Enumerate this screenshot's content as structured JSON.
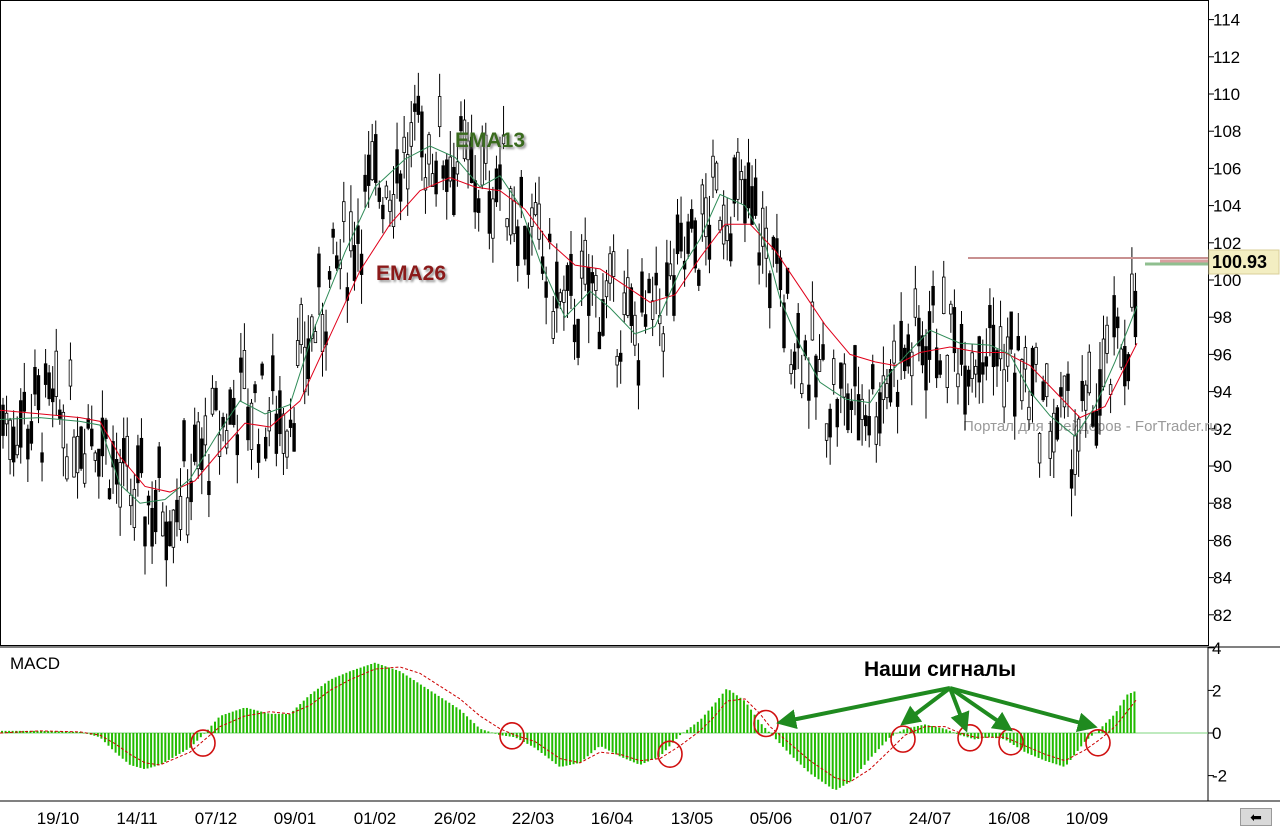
{
  "chart_data": [
    {
      "type": "candlestick",
      "title": "",
      "ylim": [
        80,
        115
      ],
      "y_ticks": [
        82,
        84,
        86,
        88,
        90,
        92,
        94,
        96,
        98,
        100,
        102,
        104,
        106,
        108,
        110,
        112,
        114
      ],
      "last_price_label": "100.93",
      "watermark": "Портал для трейдеров - ForTrader.ru",
      "x_tick_labels": [
        "19/10",
        "14/11",
        "07/12",
        "09/01",
        "01/02",
        "26/02",
        "22/03",
        "16/04",
        "13/05",
        "05/06",
        "01/07",
        "24/07",
        "16/08",
        "10/09"
      ],
      "annotations": [
        "EMA13",
        "EMA26"
      ],
      "series": [
        {
          "name": "EMA13",
          "color": "#2e8b57",
          "label_color": "#3a6b1e",
          "values": [
            [
              0,
              92.5
            ],
            [
              40,
              92.6
            ],
            [
              80,
              92.4
            ],
            [
              100,
              92.2
            ],
            [
              120,
              89
            ],
            [
              140,
              88
            ],
            [
              165,
              88.2
            ],
            [
              190,
              89.3
            ],
            [
              215,
              91.5
            ],
            [
              240,
              93.5
            ],
            [
              265,
              92.8
            ],
            [
              290,
              93.3
            ],
            [
              315,
              97.5
            ],
            [
              345,
              101.5
            ],
            [
              375,
              105
            ],
            [
              405,
              106.5
            ],
            [
              430,
              107.2
            ],
            [
              455,
              106.6
            ],
            [
              480,
              105
            ],
            [
              500,
              105.6
            ],
            [
              520,
              104
            ],
            [
              540,
              101
            ],
            [
              565,
              98
            ],
            [
              590,
              99.4
            ],
            [
              610,
              98.5
            ],
            [
              635,
              97.1
            ],
            [
              655,
              97.5
            ],
            [
              680,
              100.5
            ],
            [
              700,
              102.2
            ],
            [
              720,
              104.6
            ],
            [
              745,
              104
            ],
            [
              765,
              102
            ],
            [
              780,
              99
            ],
            [
              800,
              96.5
            ],
            [
              820,
              94.5
            ],
            [
              845,
              93.6
            ],
            [
              870,
              93.4
            ],
            [
              890,
              95
            ],
            [
              910,
              96.2
            ],
            [
              930,
              97.3
            ],
            [
              960,
              96.6
            ],
            [
              990,
              96.5
            ],
            [
              1010,
              96
            ],
            [
              1030,
              94
            ],
            [
              1050,
              92.7
            ],
            [
              1075,
              91.6
            ],
            [
              1095,
              93.2
            ],
            [
              1115,
              95.6
            ],
            [
              1137,
              98.6
            ]
          ]
        },
        {
          "name": "EMA26",
          "color": "#e0001a",
          "label_color": "#8b1a1a",
          "values": [
            [
              0,
              93
            ],
            [
              40,
              92.8
            ],
            [
              80,
              92.6
            ],
            [
              100,
              92.4
            ],
            [
              120,
              90.5
            ],
            [
              145,
              88.9
            ],
            [
              170,
              88.6
            ],
            [
              195,
              89.2
            ],
            [
              220,
              90.8
            ],
            [
              245,
              92.3
            ],
            [
              270,
              92.1
            ],
            [
              300,
              93.5
            ],
            [
              330,
              97
            ],
            [
              360,
              100.5
            ],
            [
              390,
              103
            ],
            [
              420,
              104.8
            ],
            [
              450,
              105.5
            ],
            [
              475,
              105
            ],
            [
              500,
              104.8
            ],
            [
              525,
              103.8
            ],
            [
              550,
              102
            ],
            [
              575,
              100.8
            ],
            [
              600,
              100.6
            ],
            [
              625,
              99.7
            ],
            [
              650,
              98.8
            ],
            [
              675,
              99.2
            ],
            [
              700,
              101.2
            ],
            [
              725,
              103
            ],
            [
              750,
              103
            ],
            [
              775,
              101.6
            ],
            [
              800,
              99.6
            ],
            [
              825,
              97.6
            ],
            [
              850,
              96
            ],
            [
              875,
              95.6
            ],
            [
              895,
              95.4
            ],
            [
              920,
              96.1
            ],
            [
              950,
              96.4
            ],
            [
              980,
              96.1
            ],
            [
              1005,
              96.1
            ],
            [
              1030,
              95.4
            ],
            [
              1055,
              94
            ],
            [
              1080,
              92.6
            ],
            [
              1105,
              93.2
            ],
            [
              1137,
              96.6
            ]
          ]
        }
      ]
    },
    {
      "type": "bar",
      "title": "MACD",
      "ylim": [
        -3.5,
        4
      ],
      "y_ticks": [
        -2,
        0,
        2,
        4
      ],
      "histogram_color": "#22bb00",
      "signal_line_color": "#cc0000",
      "annotation_text": "Наши сигналы",
      "signal_markers_x": [
        203,
        512,
        670,
        766,
        903,
        970,
        1011,
        1098
      ],
      "histogram_x": [
        0,
        40,
        80,
        100,
        115,
        130,
        145,
        160,
        175,
        190,
        205,
        220,
        245,
        270,
        290,
        310,
        330,
        350,
        375,
        400,
        420,
        440,
        460,
        480,
        500,
        515,
        535,
        560,
        580,
        600,
        620,
        640,
        660,
        680,
        700,
        715,
        727,
        745,
        760,
        770,
        790,
        810,
        835,
        850,
        870,
        890,
        905,
        925,
        945,
        960,
        975,
        990,
        1005,
        1025,
        1045,
        1065,
        1085,
        1100,
        1115,
        1127,
        1137
      ],
      "histogram_values": [
        0.1,
        0.1,
        0.05,
        -0.2,
        -0.9,
        -1.5,
        -1.7,
        -1.5,
        -1.1,
        -0.7,
        0.0,
        0.8,
        1.2,
        0.9,
        0.9,
        1.8,
        2.5,
        2.9,
        3.3,
        2.9,
        2.3,
        1.7,
        1.1,
        0.2,
        -0.1,
        -0.2,
        -0.7,
        -1.6,
        -1.4,
        -0.6,
        -1.1,
        -1.5,
        -1.1,
        -0.1,
        0.6,
        1.4,
        2.1,
        1.5,
        0.5,
        0.0,
        -1.0,
        -1.9,
        -2.7,
        -2.3,
        -1.2,
        -0.2,
        0.2,
        0.4,
        0.2,
        -0.1,
        -0.3,
        -0.2,
        -0.3,
        -0.9,
        -1.3,
        -1.6,
        -0.4,
        0.2,
        0.9,
        1.8,
        2.0
      ],
      "signal_values": [
        0.0,
        0.1,
        0.05,
        -0.1,
        -0.5,
        -1.0,
        -1.4,
        -1.5,
        -1.2,
        -0.9,
        -0.3,
        0.3,
        0.8,
        1.0,
        0.9,
        1.3,
        2.0,
        2.5,
        3.0,
        3.1,
        2.8,
        2.2,
        1.6,
        0.8,
        0.2,
        -0.1,
        -0.4,
        -1.2,
        -1.4,
        -0.9,
        -1.0,
        -1.3,
        -1.2,
        -0.6,
        0.1,
        0.8,
        1.5,
        1.6,
        0.9,
        0.3,
        -0.5,
        -1.3,
        -2.1,
        -2.3,
        -1.7,
        -0.8,
        -0.1,
        0.3,
        0.3,
        0.0,
        -0.2,
        -0.2,
        -0.2,
        -0.6,
        -1.0,
        -1.3,
        -0.8,
        -0.3,
        0.3,
        1.0,
        1.6
      ]
    }
  ],
  "nav": {
    "back_arrow_label": "⬅"
  }
}
